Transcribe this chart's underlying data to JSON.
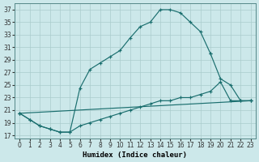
{
  "xlabel": "Humidex (Indice chaleur)",
  "background_color": "#cce8ea",
  "grid_color": "#aacccc",
  "line_color": "#1a6e6e",
  "xlim": [
    -0.5,
    23.5
  ],
  "ylim": [
    16.5,
    38
  ],
  "xticks": [
    0,
    1,
    2,
    3,
    4,
    5,
    6,
    7,
    8,
    9,
    10,
    11,
    12,
    13,
    14,
    15,
    16,
    17,
    18,
    19,
    20,
    21,
    22,
    23
  ],
  "yticks": [
    17,
    19,
    21,
    23,
    25,
    27,
    29,
    31,
    33,
    35,
    37
  ],
  "curves": [
    {
      "x": [
        0,
        1,
        2,
        3,
        4,
        5,
        6,
        7,
        8,
        9,
        10,
        11,
        12,
        13,
        14,
        15,
        16,
        17,
        18,
        19
      ],
      "y": [
        20.5,
        19.5,
        18.5,
        18.0,
        17.5,
        17.5,
        24.5,
        27.5,
        28.5,
        29.5,
        30.5,
        32.5,
        34.3,
        35.0,
        37.0,
        37.0,
        36.5,
        35.0,
        33.5,
        30.0
      ]
    },
    {
      "x": [
        19,
        20,
        21,
        22,
        23
      ],
      "y": [
        30.0,
        26.0,
        25.0,
        22.5,
        22.5
      ]
    },
    {
      "x": [
        0,
        23
      ],
      "y": [
        20.5,
        22.5
      ]
    },
    {
      "x": [
        0,
        1,
        2,
        3,
        4,
        5,
        6,
        7,
        8,
        9,
        10,
        11,
        12,
        13,
        14,
        15,
        16,
        17,
        18,
        19,
        20,
        21,
        22,
        23
      ],
      "y": [
        20.5,
        19.5,
        18.5,
        18.0,
        17.5,
        17.5,
        18.5,
        19.0,
        19.5,
        20.0,
        20.5,
        21.0,
        21.5,
        22.0,
        22.5,
        22.5,
        23.0,
        23.0,
        23.5,
        24.0,
        25.5,
        22.5,
        22.5,
        22.5
      ]
    }
  ]
}
